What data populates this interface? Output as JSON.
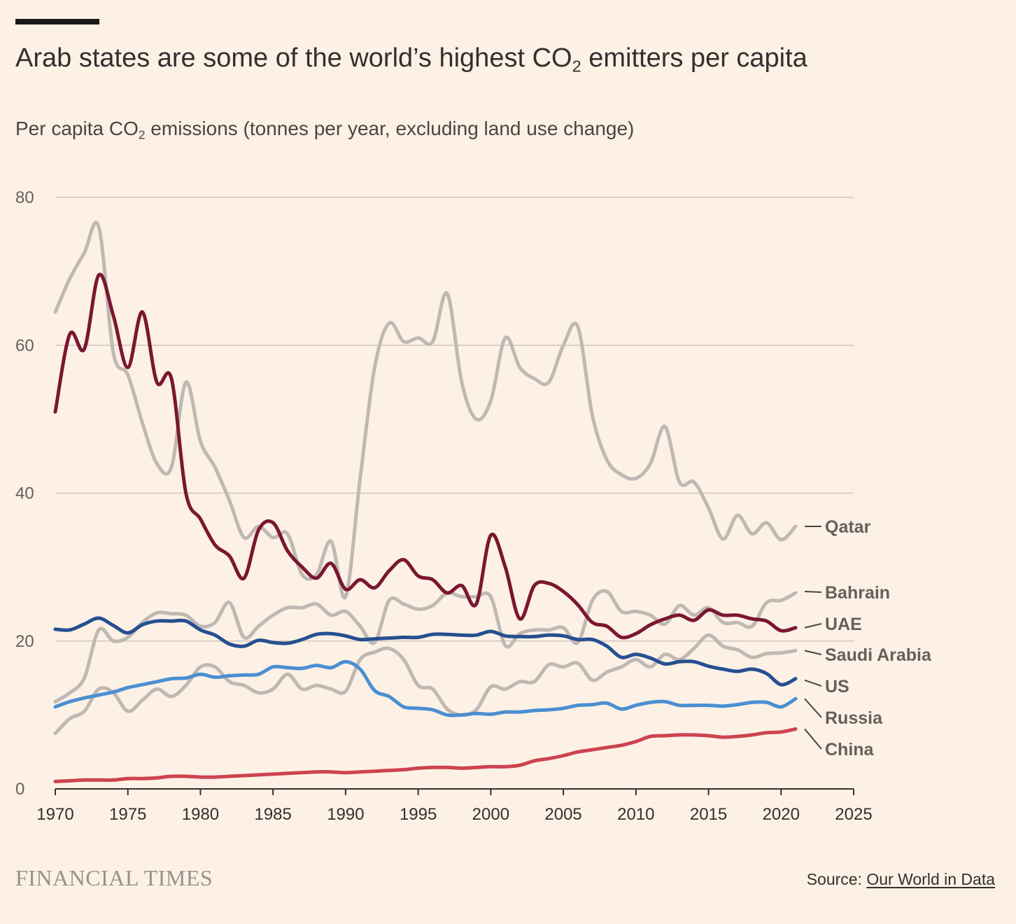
{
  "header": {
    "title_prefix": "Arab states are some of the world’s highest CO",
    "title_sub": "2",
    "title_suffix": " emitters per capita",
    "subtitle_prefix": "Per capita CO",
    "subtitle_sub": "2",
    "subtitle_suffix": " emissions (tonnes per year, excluding land use change)"
  },
  "footer": {
    "logo_text": "FINANCIAL TIMES",
    "source_label": "Source: ",
    "source_link": "Our World in Data"
  },
  "chart_data": {
    "type": "line",
    "xlim": [
      1970,
      2025
    ],
    "ylim": [
      0,
      80
    ],
    "x_ticks": [
      1970,
      1975,
      1980,
      1985,
      1990,
      1995,
      2000,
      2005,
      2010,
      2015,
      2020,
      2025
    ],
    "y_ticks": [
      0,
      20,
      40,
      60,
      80
    ],
    "grid": "horizontal",
    "legend": "direct-labels-right",
    "x_start": 1970,
    "series": [
      {
        "name": "Qatar",
        "color": "#bfb8b3",
        "label_y": 35.5,
        "values": [
          64.5,
          69,
          72.5,
          76,
          59,
          56,
          49.5,
          44,
          43.5,
          55,
          47,
          43.5,
          39,
          34,
          35.5,
          34,
          34.5,
          29,
          29,
          33.5,
          26,
          42,
          57,
          63,
          60.5,
          61,
          60.5,
          67,
          55,
          50,
          52.5,
          61,
          57,
          55.5,
          55,
          60,
          62.5,
          50.5,
          44.5,
          42.5,
          42,
          44,
          49,
          41.5,
          41.5,
          38,
          33.8,
          37,
          34.5,
          36,
          33.7,
          35.5
        ]
      },
      {
        "name": "Bahrain",
        "color": "#bfb8b3",
        "label_y": 26.7,
        "values": [
          11.8,
          13,
          15,
          21.5,
          20,
          20.5,
          22.5,
          23.8,
          23.7,
          23.5,
          22,
          22.5,
          25.2,
          20.5,
          22,
          23.5,
          24.5,
          24.5,
          25,
          23.5,
          24,
          22,
          19.8,
          25.5,
          25,
          24.3,
          24.8,
          26.5,
          26,
          26,
          26,
          19.4,
          21,
          21.5,
          21.5,
          21.8,
          19.8,
          25.5,
          26.7,
          24,
          24,
          23.5,
          22.3,
          24.8,
          23.5,
          24.5,
          22.5,
          22.5,
          22,
          25.2,
          25.5,
          26.5
        ]
      },
      {
        "name": "Saudi Arabia",
        "color": "#bfb8b3",
        "label_y": 18.7,
        "values": [
          7.5,
          9.5,
          10.5,
          13.5,
          13,
          10.5,
          12,
          13.5,
          12.5,
          14,
          16.5,
          16.5,
          14.5,
          14,
          13,
          13.5,
          15.5,
          13.5,
          14,
          13.5,
          13.2,
          17.5,
          18.5,
          19,
          17.5,
          14,
          13.5,
          10.8,
          10,
          10.7,
          13.8,
          13.5,
          14.5,
          14.5,
          16.8,
          16.5,
          17,
          14.7,
          15.8,
          16.5,
          17.5,
          16.5,
          18.2,
          17.5,
          19,
          20.8,
          19.3,
          18.8,
          17.8,
          18.3,
          18.4,
          18.7
        ]
      },
      {
        "name": "UAE",
        "color": "#7a1730",
        "label_y": 21.8,
        "values": [
          51,
          61.5,
          59.5,
          69.5,
          64,
          57,
          64.5,
          55,
          55.5,
          40,
          36.5,
          33,
          31.5,
          28.5,
          35,
          36,
          32.2,
          30,
          28.5,
          30.5,
          27,
          28.3,
          27.2,
          29.5,
          31,
          28.8,
          28.3,
          26.5,
          27.5,
          25,
          34.3,
          30,
          23,
          27.5,
          27.8,
          26.7,
          24.9,
          22.5,
          22,
          20.5,
          21,
          22.2,
          23,
          23.5,
          22.8,
          24.2,
          23.5,
          23.5,
          23,
          22.7,
          21.4,
          21.8
        ]
      },
      {
        "name": "US",
        "color": "#264f91",
        "label_y": 14.7,
        "values": [
          21.6,
          21.5,
          22.3,
          23.1,
          22.1,
          21.1,
          22.2,
          22.7,
          22.7,
          22.7,
          21.5,
          20.8,
          19.6,
          19.3,
          20.1,
          19.8,
          19.7,
          20.2,
          20.9,
          21,
          20.7,
          20.2,
          20.3,
          20.4,
          20.5,
          20.5,
          20.9,
          20.9,
          20.8,
          20.8,
          21.3,
          20.7,
          20.6,
          20.6,
          20.8,
          20.7,
          20.2,
          20.2,
          19.3,
          17.8,
          18.2,
          17.7,
          16.9,
          17.2,
          17.2,
          16.6,
          16.2,
          15.9,
          16.2,
          15.6,
          14.1,
          14.9
        ]
      },
      {
        "name": "Russia",
        "color": "#4a8fd1",
        "label_y": 12.2,
        "values": [
          11.1,
          11.8,
          12.3,
          12.7,
          13.1,
          13.7,
          14.1,
          14.5,
          14.9,
          15,
          15.5,
          15.1,
          15.3,
          15.4,
          15.5,
          16.5,
          16.4,
          16.3,
          16.7,
          16.4,
          17.2,
          16.2,
          13.3,
          12.5,
          11.1,
          10.9,
          10.7,
          10,
          10,
          10.2,
          10.1,
          10.4,
          10.4,
          10.6,
          10.7,
          10.9,
          11.3,
          11.4,
          11.6,
          10.8,
          11.3,
          11.7,
          11.8,
          11.3,
          11.3,
          11.3,
          11.2,
          11.4,
          11.7,
          11.7,
          11.1,
          12.2
        ]
      },
      {
        "name": "China",
        "color": "#cc434e",
        "label_y": 8.1,
        "values": [
          1.0,
          1.1,
          1.2,
          1.2,
          1.2,
          1.4,
          1.4,
          1.5,
          1.7,
          1.7,
          1.6,
          1.6,
          1.7,
          1.8,
          1.9,
          2.0,
          2.1,
          2.2,
          2.3,
          2.3,
          2.2,
          2.3,
          2.4,
          2.5,
          2.6,
          2.8,
          2.9,
          2.9,
          2.8,
          2.9,
          3.0,
          3.0,
          3.2,
          3.8,
          4.1,
          4.5,
          5.0,
          5.3,
          5.6,
          5.9,
          6.4,
          7.1,
          7.2,
          7.3,
          7.3,
          7.2,
          7.0,
          7.1,
          7.3,
          7.6,
          7.7,
          8.1
        ]
      }
    ]
  }
}
